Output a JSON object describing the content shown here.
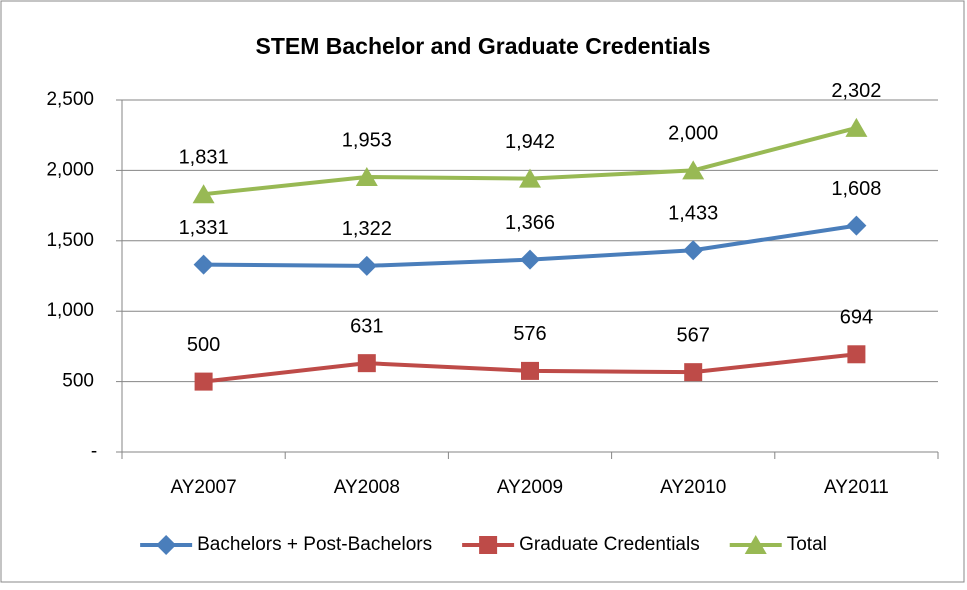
{
  "chart_data": {
    "type": "line",
    "title": "STEM Bachelor and Graduate Credentials",
    "categories": [
      "AY2007",
      "AY2008",
      "AY2009",
      "AY2010",
      "AY2011"
    ],
    "series": [
      {
        "name": "Bachelors + Post-Bachelors",
        "color": "#4a7ebb",
        "marker": "diamond",
        "values": [
          1331,
          1322,
          1366,
          1433,
          1608
        ],
        "value_labels": [
          "1,331",
          "1,322",
          "1,366",
          "1,433",
          "1,608"
        ]
      },
      {
        "name": "Graduate Credentials",
        "color": "#be4b48",
        "marker": "square",
        "values": [
          500,
          631,
          576,
          567,
          694
        ],
        "value_labels": [
          "500",
          "631",
          "576",
          "567",
          "694"
        ]
      },
      {
        "name": "Total",
        "color": "#98b954",
        "marker": "triangle",
        "values": [
          1831,
          1953,
          1942,
          2000,
          2302
        ],
        "value_labels": [
          "1,831",
          "1,953",
          "1,942",
          "2,000",
          "2,302"
        ]
      }
    ],
    "ylim": [
      0,
      2500
    ],
    "yticks": [
      {
        "value": 0,
        "label": "-"
      },
      500,
      {
        "value": 1000,
        "label": "1,000"
      },
      {
        "value": 1500,
        "label": "1,500"
      },
      {
        "value": 2000,
        "label": "2,000"
      },
      {
        "value": 2500,
        "label": "2,500"
      }
    ],
    "grid": true,
    "legend": "bottom"
  }
}
